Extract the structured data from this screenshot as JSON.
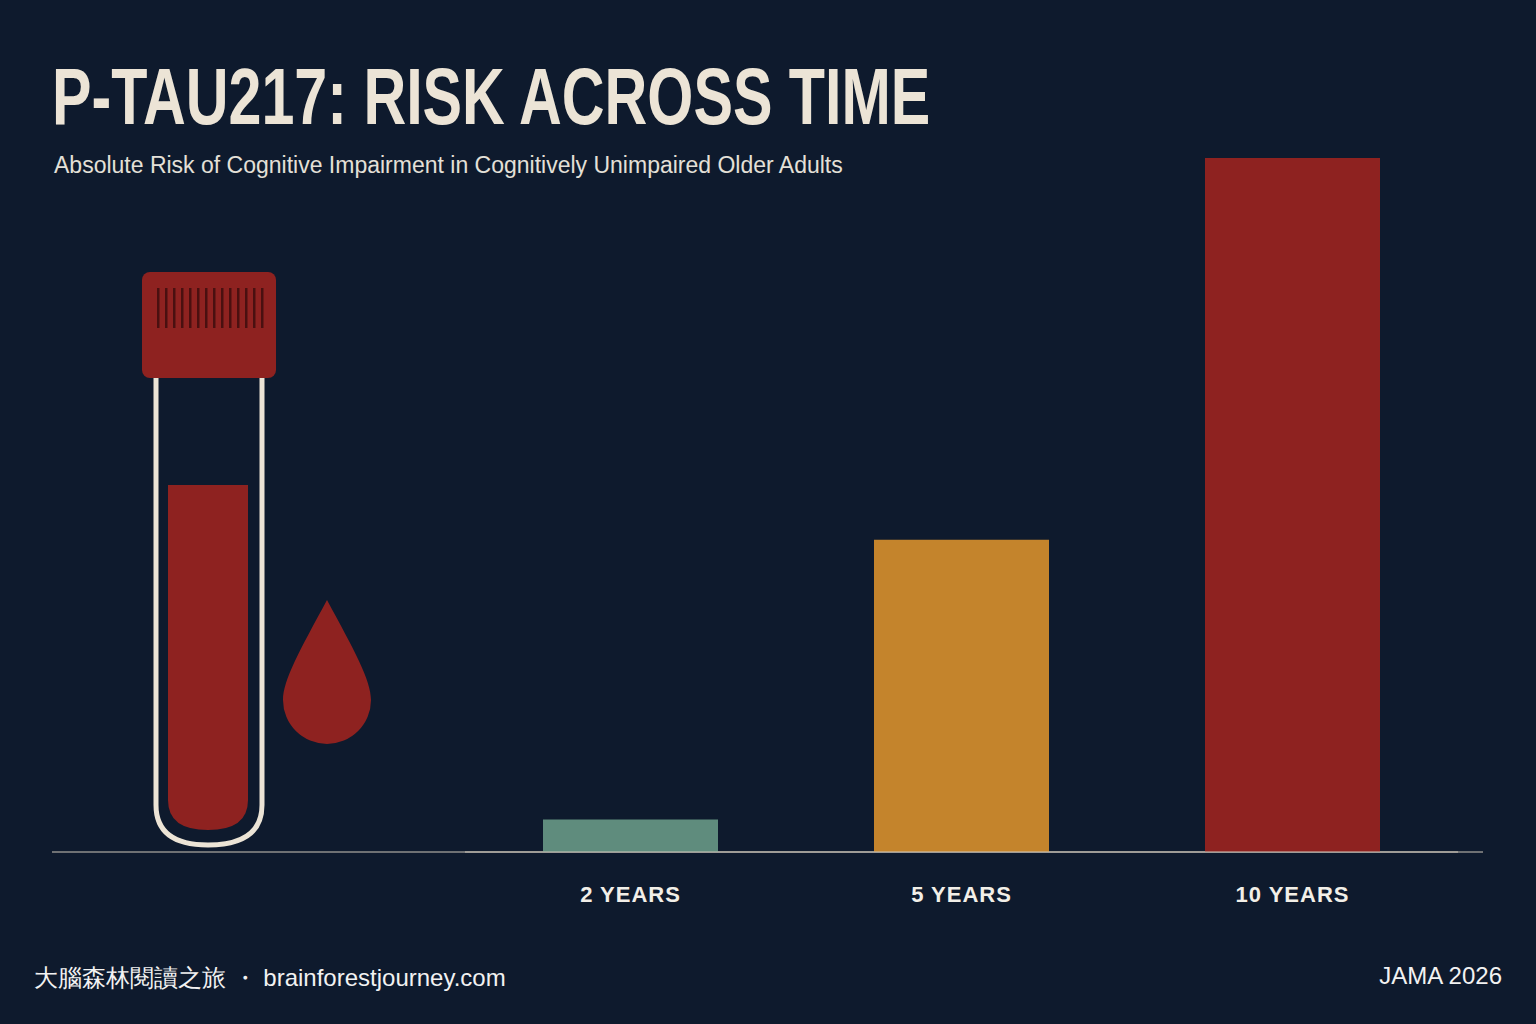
{
  "chart_data": {
    "type": "bar",
    "title": "P-TAU217: RISK ACROSS TIME",
    "subtitle": "Absolute Risk of Cognitive Impairment in Cognitively Unimpaired Older Adults",
    "categories": [
      "2 YEARS",
      "5 YEARS",
      "10 YEARS"
    ],
    "values": [
      1.4,
      13.5,
      30
    ],
    "colors": [
      "#5f8c7d",
      "#c4842c",
      "#8e2220"
    ],
    "ylim": [
      0,
      30
    ],
    "tick_labels": "x",
    "grid": false,
    "annotations": [
      "大腦森林閱讀之旅 ・ brainforestjourney.com",
      "JAMA 2026"
    ]
  }
}
